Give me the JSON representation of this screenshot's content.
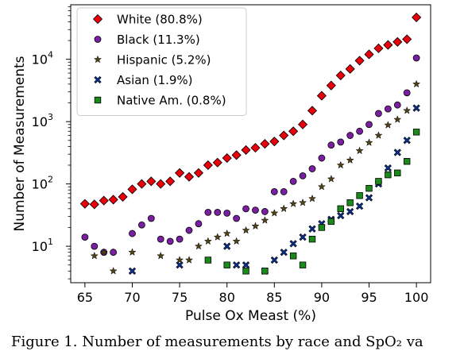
{
  "chart_data": {
    "type": "scatter",
    "xlabel": "Pulse Ox Meast (%)",
    "ylabel": "Number of Measurements",
    "x_scale": "linear",
    "y_scale": "log",
    "xlim": [
      63.5,
      101.5
    ],
    "ylim": [
      2.6,
      75000
    ],
    "x_ticks": [
      65,
      70,
      75,
      80,
      85,
      90,
      95,
      100
    ],
    "x_tick_labels": [
      "65",
      "70",
      "75",
      "80",
      "85",
      "90",
      "95",
      "100"
    ],
    "y_ticks": [
      10,
      100,
      1000,
      10000
    ],
    "y_tick_labels": [
      "10",
      "10",
      "10",
      "10"
    ],
    "y_tick_exponents": [
      "1",
      "2",
      "3",
      "4"
    ],
    "grid": false,
    "legend_position": "top-left",
    "series": [
      {
        "name": "White (80.8%)",
        "marker": "diamond",
        "color": "#e8000b",
        "x": [
          65,
          66,
          67,
          68,
          69,
          70,
          71,
          72,
          73,
          74,
          75,
          76,
          77,
          78,
          79,
          80,
          81,
          82,
          83,
          84,
          85,
          86,
          87,
          88,
          89,
          90,
          91,
          92,
          93,
          94,
          95,
          96,
          97,
          98,
          99,
          100
        ],
        "y": [
          48,
          47,
          54,
          56,
          62,
          82,
          100,
          110,
          100,
          110,
          150,
          130,
          150,
          200,
          220,
          260,
          290,
          350,
          380,
          440,
          480,
          600,
          700,
          900,
          1500,
          2600,
          3800,
          5500,
          7000,
          9500,
          12000,
          15000,
          17000,
          19000,
          21000,
          47000
        ]
      },
      {
        "name": "Black (11.3%)",
        "marker": "circle",
        "color": "#7a1fa2",
        "x": [
          65,
          66,
          67,
          68,
          70,
          71,
          72,
          73,
          74,
          75,
          76,
          77,
          78,
          79,
          80,
          81,
          82,
          83,
          84,
          85,
          86,
          87,
          88,
          89,
          90,
          91,
          92,
          93,
          94,
          95,
          96,
          97,
          98,
          99,
          100
        ],
        "y": [
          14,
          10,
          8,
          8,
          16,
          22,
          28,
          13,
          12,
          13,
          18,
          23,
          35,
          35,
          34,
          28,
          40,
          38,
          36,
          75,
          75,
          110,
          135,
          175,
          260,
          420,
          470,
          600,
          700,
          900,
          1350,
          1600,
          1850,
          2900,
          10500
        ]
      },
      {
        "name": "Hispanic (5.2%)",
        "marker": "star",
        "color": "#4f4316",
        "x": [
          66,
          67,
          68,
          70,
          73,
          75,
          76,
          77,
          78,
          79,
          80,
          81,
          82,
          83,
          84,
          85,
          86,
          87,
          88,
          89,
          90,
          91,
          92,
          93,
          94,
          95,
          96,
          97,
          98,
          99,
          100
        ],
        "y": [
          7,
          8,
          4,
          8,
          7,
          6,
          6,
          10,
          12,
          14,
          16,
          12,
          18,
          21,
          26,
          34,
          40,
          48,
          50,
          58,
          90,
          120,
          200,
          240,
          340,
          460,
          600,
          880,
          1080,
          1500,
          4000
        ]
      },
      {
        "name": "Asian (1.9%)",
        "marker": "x",
        "color": "#0a2f8f",
        "x": [
          70,
          75,
          80,
          81,
          82,
          84,
          85,
          86,
          87,
          88,
          89,
          90,
          91,
          92,
          93,
          94,
          95,
          96,
          97,
          98,
          99,
          100
        ],
        "y": [
          4,
          5,
          10,
          5,
          5,
          4,
          6,
          8,
          11,
          14,
          19,
          23,
          27,
          31,
          36,
          44,
          60,
          100,
          180,
          320,
          500,
          1650
        ]
      },
      {
        "name": "Native Am. (0.8%)",
        "marker": "square",
        "color": "#1a8a1a",
        "x": [
          78,
          80,
          82,
          84,
          87,
          88,
          89,
          90,
          91,
          92,
          93,
          94,
          95,
          96,
          97,
          98,
          99,
          100
        ],
        "y": [
          6,
          5,
          4,
          4,
          7,
          5,
          13,
          20,
          25,
          40,
          50,
          65,
          85,
          110,
          140,
          150,
          230,
          680
        ]
      }
    ]
  },
  "caption": {
    "text": "Figure 1. Number of measurements by race and SpO₂ va"
  }
}
